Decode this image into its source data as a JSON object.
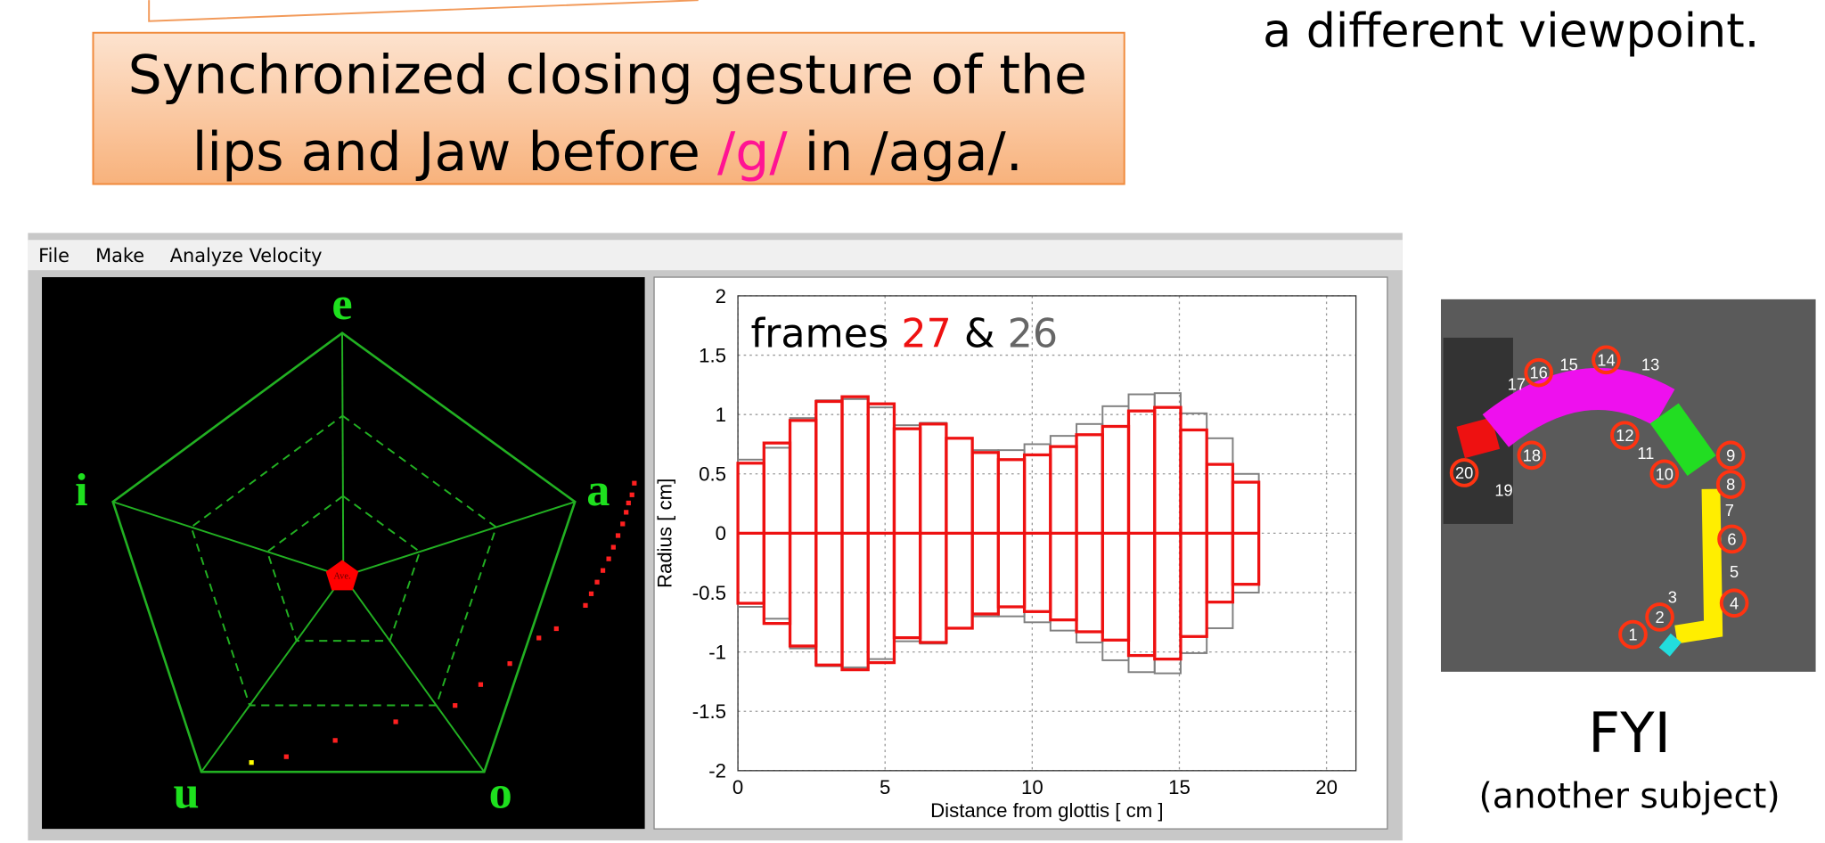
{
  "callout": {
    "line1": "Synchronized closing gesture of the",
    "line2_a": "lips and Jaw before ",
    "line2_b": "/g/",
    "line2_c": " in /aga/."
  },
  "side_note": "a different viewpoint.",
  "window": {
    "menu": [
      "File",
      "Make",
      "Analyze Velocity"
    ]
  },
  "pentagon": {
    "labels": {
      "e": "e",
      "i": "i",
      "a": "a",
      "u": "u",
      "o": "o"
    },
    "center_label": "Ave."
  },
  "chart": {
    "type": "bar",
    "title_a": "frames ",
    "title_b": "27",
    "title_c": " & ",
    "title_d": "26",
    "ylabel": "Radius [ cm]",
    "xlabel": "Distance from glottis [ cm ]",
    "xlim": [
      0,
      21
    ],
    "ylim": [
      -2,
      2
    ],
    "xticks": [
      0,
      5,
      10,
      15,
      20
    ],
    "yticks": [
      -2,
      -1.5,
      -1,
      -0.5,
      0,
      0.5,
      1,
      1.5,
      2
    ],
    "grid": true,
    "bins": [
      0,
      0.885,
      1.77,
      2.655,
      3.54,
      4.425,
      5.31,
      6.195,
      7.08,
      7.965,
      8.85,
      9.735,
      10.62,
      11.505,
      12.39,
      13.275,
      14.16,
      15.045,
      15.93,
      16.815,
      17.7
    ],
    "series": [
      {
        "color": "#808080",
        "values": [
          0.62,
          0.72,
          0.97,
          1.12,
          1.13,
          1.06,
          0.91,
          0.93,
          0.8,
          0.7,
          0.7,
          0.75,
          0.82,
          0.92,
          1.07,
          1.17,
          1.18,
          1.01,
          0.8,
          0.5
        ]
      },
      {
        "color": "#ee1111",
        "values": [
          0.59,
          0.76,
          0.95,
          1.11,
          1.15,
          1.09,
          0.88,
          0.92,
          0.8,
          0.68,
          0.62,
          0.66,
          0.73,
          0.83,
          0.9,
          1.03,
          1.06,
          0.87,
          0.58,
          0.43
        ]
      }
    ]
  },
  "mri": {
    "labels": [
      "1",
      "2",
      "3",
      "4",
      "5",
      "6",
      "7",
      "8",
      "9",
      "10",
      "11",
      "12",
      "13",
      "14",
      "15",
      "16",
      "17",
      "18",
      "19",
      "20"
    ]
  },
  "fyi": {
    "title": "FYI",
    "subtitle": "(another subject)"
  }
}
